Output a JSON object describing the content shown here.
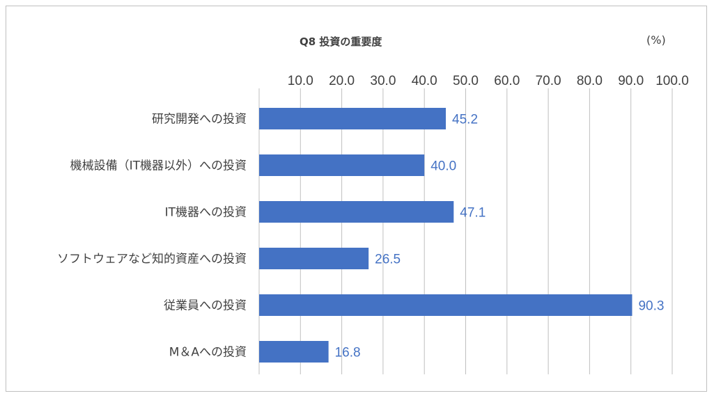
{
  "chart_data": {
    "type": "bar",
    "orientation": "horizontal",
    "title": "Q8 投資の重要度",
    "unit_label": "(%)",
    "categories": [
      "研究開発への投資",
      "機械設備（IT機器以外）への投資",
      "IT機器への投資",
      "ソフトウェアなど知的資産への投資",
      "従業員への投資",
      "M＆Aへの投資"
    ],
    "values": [
      45.2,
      40.0,
      47.1,
      26.5,
      90.3,
      16.8
    ],
    "value_labels": [
      "45.2",
      "40.0",
      "47.1",
      "26.5",
      "90.3",
      "16.8"
    ],
    "xlim": [
      0,
      100
    ],
    "x_ticks": [
      "10.0",
      "20.0",
      "30.0",
      "40.0",
      "50.0",
      "60.0",
      "70.0",
      "80.0",
      "90.0",
      "100.0"
    ],
    "x_axis_position": "top",
    "grid": true,
    "legend": "none",
    "bar_color": "#4472c4",
    "label_color": "#4472c4"
  }
}
